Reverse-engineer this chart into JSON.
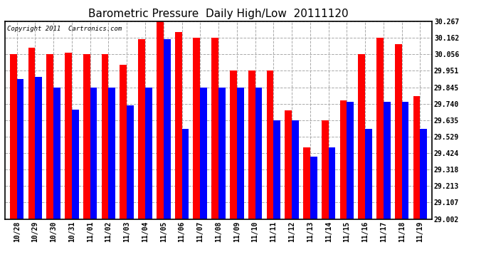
{
  "title": "Barometric Pressure  Daily High/Low  20111120",
  "copyright": "Copyright 2011  Cartronics.com",
  "categories": [
    "10/28",
    "10/29",
    "10/30",
    "10/31",
    "11/01",
    "11/02",
    "11/03",
    "11/04",
    "11/05",
    "11/06",
    "11/07",
    "11/08",
    "11/09",
    "11/10",
    "11/11",
    "11/12",
    "11/13",
    "11/14",
    "11/15",
    "11/16",
    "11/17",
    "11/18",
    "11/19"
  ],
  "highs": [
    30.056,
    30.1,
    30.056,
    30.067,
    30.056,
    30.056,
    29.99,
    30.155,
    30.267,
    30.2,
    30.162,
    30.162,
    29.951,
    29.951,
    29.951,
    29.698,
    29.462,
    29.635,
    29.76,
    30.056,
    30.162,
    30.12,
    29.79
  ],
  "lows": [
    29.9,
    29.91,
    29.845,
    29.7,
    29.845,
    29.845,
    29.73,
    29.845,
    30.155,
    29.58,
    29.845,
    29.845,
    29.845,
    29.845,
    29.635,
    29.635,
    29.4,
    29.462,
    29.75,
    29.58,
    29.75,
    29.75,
    29.58
  ],
  "high_color": "#ff0000",
  "low_color": "#0000ff",
  "bg_color": "#ffffff",
  "grid_color": "#aaaaaa",
  "ymin": 29.002,
  "ymax": 30.267,
  "yticks": [
    29.002,
    29.107,
    29.213,
    29.318,
    29.424,
    29.529,
    29.635,
    29.74,
    29.845,
    29.951,
    30.056,
    30.162,
    30.267
  ],
  "bar_width": 0.38,
  "title_fontsize": 11,
  "tick_fontsize": 7,
  "copyright_fontsize": 6.5
}
